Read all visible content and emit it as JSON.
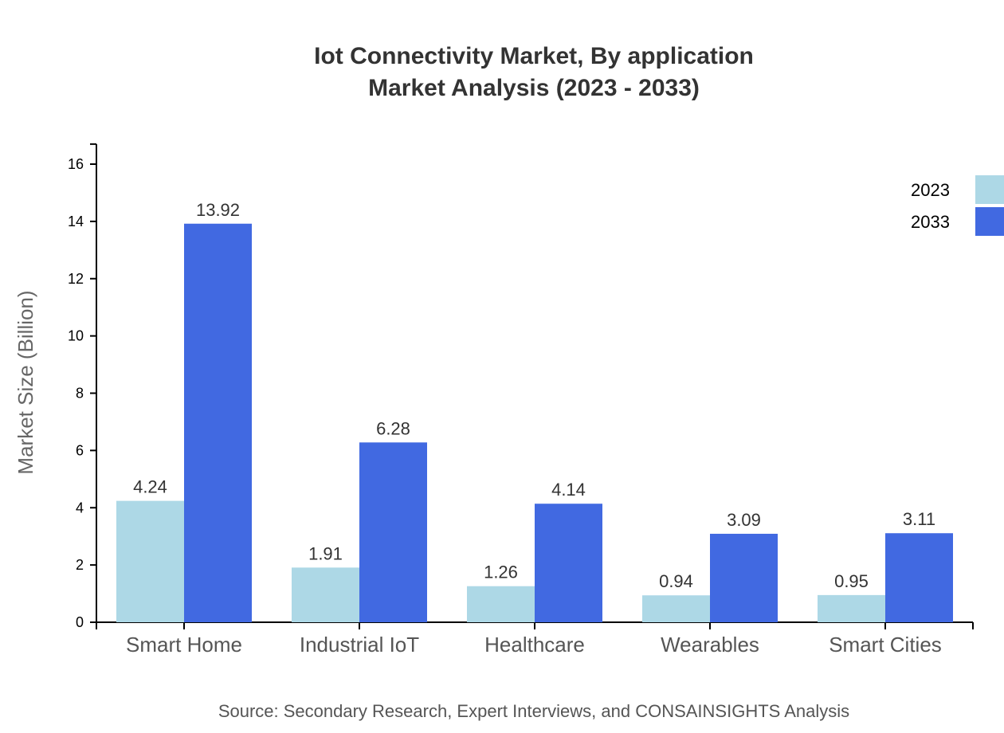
{
  "chart_data": {
    "type": "bar",
    "title": "Iot Connectivity Market, By application",
    "subtitle": "Market Analysis (2023 - 2033)",
    "ylabel": "Market Size (Billion)",
    "xlabel": "",
    "ylim": [
      0,
      16.7
    ],
    "yticks": [
      0,
      2,
      4,
      6,
      8,
      10,
      12,
      14,
      16
    ],
    "grid": false,
    "legend_position": "top-right",
    "categories": [
      "Smart Home",
      "Industrial IoT",
      "Healthcare",
      "Wearables",
      "Smart Cities"
    ],
    "series": [
      {
        "name": "2023",
        "color": "#ADD8E6",
        "values": [
          4.24,
          1.91,
          1.26,
          0.94,
          0.95
        ]
      },
      {
        "name": "2033",
        "color": "#4169E1",
        "values": [
          13.92,
          6.28,
          4.14,
          3.09,
          3.11
        ]
      }
    ],
    "source": "Source: Secondary Research, Expert Interviews, and CONSAINSIGHTS Analysis"
  }
}
